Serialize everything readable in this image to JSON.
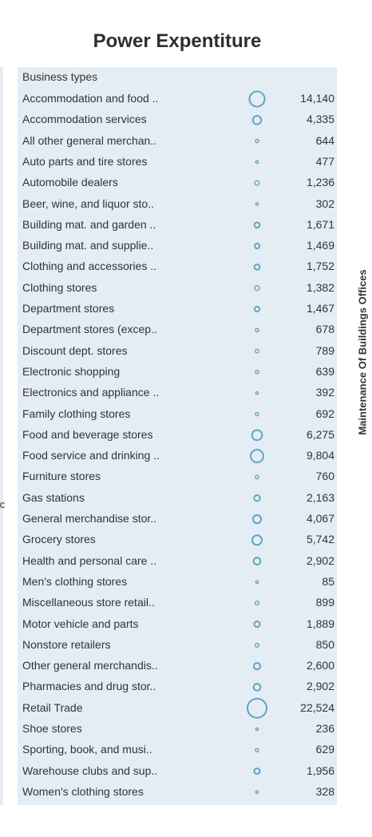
{
  "chart_data": {
    "type": "scatter",
    "title": "Power Expentiture",
    "row_header": "Business types",
    "side_label": "Maintenance Of Buildings Offices",
    "cut_label": "tc",
    "mark_color": "#5fa4c8",
    "categories": [
      "Accommodation and food ..",
      "Accommodation services",
      "All other general merchan..",
      "Auto parts and tire stores",
      "Automobile dealers",
      "Beer, wine, and liquor sto..",
      "Building mat. and garden ..",
      "Building mat. and supplie..",
      "Clothing and accessories ..",
      "Clothing stores",
      "Department stores",
      "Department stores (excep..",
      "Discount dept. stores",
      "Electronic shopping",
      "Electronics and appliance ..",
      "Family clothing stores",
      "Food and beverage stores",
      "Food service and drinking ..",
      "Furniture stores",
      "Gas stations",
      "General merchandise stor..",
      "Grocery stores",
      "Health and personal care ..",
      "Men's clothing stores",
      "Miscellaneous store retail..",
      "Motor vehicle and parts",
      "Nonstore retailers",
      "Other general merchandis..",
      "Pharmacies and drug stor..",
      "Retail Trade",
      "Shoe stores",
      "Sporting, book, and musi..",
      "Warehouse clubs and sup..",
      "Women's clothing stores"
    ],
    "values": [
      14140,
      4335,
      644,
      477,
      1236,
      302,
      1671,
      1469,
      1752,
      1382,
      1467,
      678,
      789,
      639,
      392,
      692,
      6275,
      9804,
      760,
      2163,
      4067,
      5742,
      2902,
      85,
      899,
      1889,
      850,
      2600,
      2902,
      22524,
      236,
      629,
      1956,
      328
    ],
    "value_labels": [
      "14,140",
      "4,335",
      "644",
      "477",
      "1,236",
      "302",
      "1,671",
      "1,469",
      "1,752",
      "1,382",
      "1,467",
      "678",
      "789",
      "639",
      "392",
      "692",
      "6,275",
      "9,804",
      "760",
      "2,163",
      "4,067",
      "5,742",
      "2,902",
      "85",
      "899",
      "1,889",
      "850",
      "2,600",
      "2,902",
      "22,524",
      "236",
      "629",
      "1,956",
      "328"
    ]
  }
}
